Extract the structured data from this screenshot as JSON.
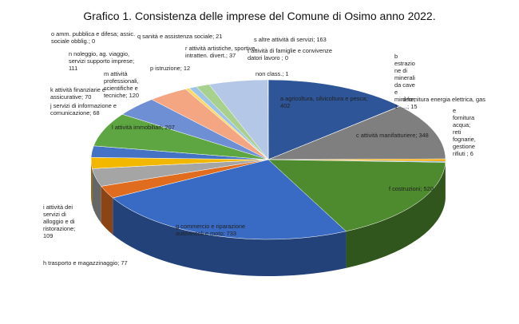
{
  "title": "Grafico 1. Consistenza delle imprese del Comune di Osimo anno 2022.",
  "chart_data": {
    "type": "pie",
    "style": "3d",
    "title": "Grafico 1. Consistenza delle imprese del Comune di Osimo anno 2022.",
    "slices": [
      {
        "label": "a agricoltura, silvicoltura e pesca",
        "value": 402,
        "color": "#2e5597",
        "label_text": [
          "a agricoltura, silvicoltura e pesca;",
          "402"
        ]
      },
      {
        "label": "b estrazione di minerali da cave e miniere",
        "value": 1,
        "color": "#c9c9c9",
        "label_text": [
          "b",
          "estrazio",
          "ne di",
          "minerali",
          "da cave",
          "e",
          "miniere;",
          "1"
        ]
      },
      {
        "label": "c attività manifatturiere",
        "value": 348,
        "color": "#7f7f7f",
        "label_text": [
          "c attività manifatturiere; 348"
        ]
      },
      {
        "label": "d fornitura energia elettrica, gas ...",
        "value": 15,
        "color": "#f2a900",
        "label_text": [
          "d fornitura energia elettrica, gas",
          "...; 15"
        ]
      },
      {
        "label": "e fornitura acqua; reti fognarie, gestione rifiuti",
        "value": 6,
        "color": "#5b9bd5",
        "label_text": [
          "e",
          "fornitura",
          "acqua;",
          "reti",
          "fognarie,",
          "gestione",
          "rifiuti ; 6"
        ]
      },
      {
        "label": "f costruzioni",
        "value": 520,
        "color": "#4e8a2e",
        "label_text": [
          "f costruzioni; 520"
        ]
      },
      {
        "label": "g commercio e riparazione autoveicoli e moto",
        "value": 733,
        "color": "#3a6bc4",
        "label_text": [
          "g commercio e riparazione",
          "autoveicoli e moto; 733"
        ]
      },
      {
        "label": "h trasporto e magazzinaggio",
        "value": 77,
        "color": "#e06d1f",
        "label_text": [
          "h trasporto e magazzinaggio; 77"
        ]
      },
      {
        "label": "i attività dei servizi di alloggio e di ristorazione",
        "value": 109,
        "color": "#a5a5a5",
        "label_text": [
          "i attività dei",
          "servizi di",
          "alloggio e di",
          "ristorazione;",
          "109"
        ]
      },
      {
        "label": "j servizi di informazione e comunicazione",
        "value": 68,
        "color": "#f2b800",
        "label_text": [
          "j servizi di informazione e",
          "comunicazione; 68"
        ]
      },
      {
        "label": "k attività finanziarie e assicurative",
        "value": 70,
        "color": "#4472c4",
        "label_text": [
          "k attività finanziarie e",
          "assicurative; 70"
        ]
      },
      {
        "label": "l attività immobiliari",
        "value": 207,
        "color": "#5ea641",
        "label_text": [
          "l attività immobiliari; 207"
        ]
      },
      {
        "label": "m attività professionali, scientifiche e tecniche",
        "value": 120,
        "color": "#6f8fd4",
        "label_text": [
          "m attività",
          "professionali,",
          "scientifiche e",
          "tecniche; 120"
        ]
      },
      {
        "label": "n noleggio, ag. viaggio, servizi supporto imprese",
        "value": 111,
        "color": "#f4a582",
        "label_text": [
          "n noleggio, ag. viaggio,",
          "servizi supporto imprese;",
          "111"
        ]
      },
      {
        "label": "o amm. pubblica e difesa; assic. sociale obblig.",
        "value": 0,
        "color": "#bfbfbf",
        "label_text": [
          "o amm. pubblica e difesa; assic.",
          "sociale obblig.; 0"
        ]
      },
      {
        "label": "p istruzione",
        "value": 12,
        "color": "#ffd966",
        "label_text": [
          "p istruzione; 12"
        ]
      },
      {
        "label": "q sanità e assistenza sociale",
        "value": 21,
        "color": "#9dc3e6",
        "label_text": [
          "q sanità e assistenza sociale; 21"
        ]
      },
      {
        "label": "r attività artistiche, sportive, intratten. divert.",
        "value": 37,
        "color": "#a9d18e",
        "label_text": [
          "r attività artistiche, sportive,",
          "intratten. divert.; 37"
        ]
      },
      {
        "label": "s altre attività di servizi",
        "value": 163,
        "color": "#b4c7e7",
        "label_text": [
          "s altre attività di servizi; 163"
        ]
      },
      {
        "label": "t attività di famiglie e convivenze datori lavoro",
        "value": 0,
        "color": "#d9d9d9",
        "label_text": [
          "t attività di famiglie e convivenze",
          "datori lavoro ; 0"
        ]
      },
      {
        "label": "non class.",
        "value": 1,
        "color": "#dbe3f0",
        "label_text": [
          "non class.; 1"
        ]
      }
    ]
  }
}
